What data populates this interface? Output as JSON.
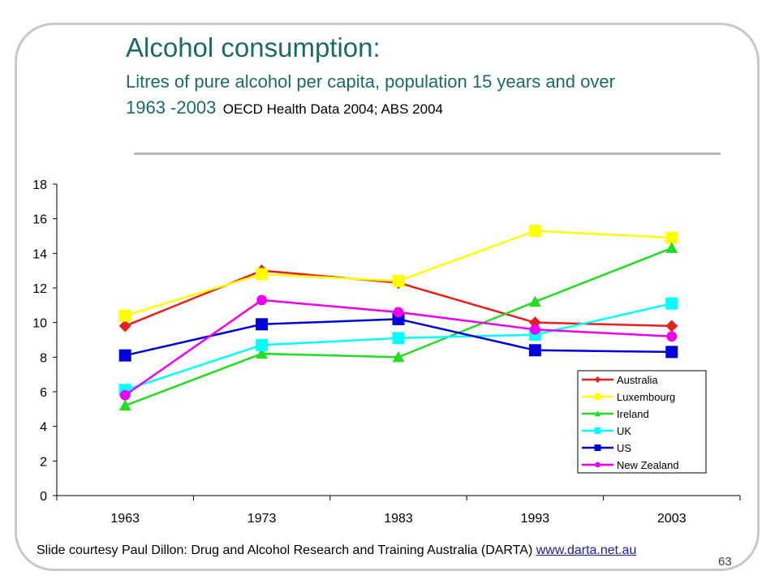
{
  "slide": {
    "title": "Alcohol consumption:",
    "subtitle": "Litres of pure alcohol per capita, population 15 years and over",
    "years": "1963 -2003",
    "source": "OECD Health Data 2004; ABS 2004",
    "footer_text": "Slide courtesy Paul Dillon: Drug and Alcohol Research and Training Australia (DARTA) ",
    "footer_link": "www.darta.net.au",
    "page_number": "63"
  },
  "chart_data": {
    "type": "line",
    "categories": [
      "1963",
      "1973",
      "1983",
      "1993",
      "2003"
    ],
    "ylim": [
      0,
      18
    ],
    "yticks": [
      0,
      2,
      4,
      6,
      8,
      10,
      12,
      14,
      16,
      18
    ],
    "grid": false,
    "legend_position": "bottom-right",
    "series": [
      {
        "name": "Australia",
        "color": "#e4211c",
        "marker": "diamond",
        "values": [
          9.8,
          13.0,
          12.3,
          10.0,
          9.8
        ]
      },
      {
        "name": "Luxembourg",
        "color": "#ffff00",
        "marker": "square",
        "values": [
          10.4,
          12.8,
          12.4,
          15.3,
          14.9
        ]
      },
      {
        "name": "Ireland",
        "color": "#22dd22",
        "marker": "triangle",
        "values": [
          5.2,
          8.2,
          8.0,
          11.2,
          14.3
        ]
      },
      {
        "name": "UK",
        "color": "#00ffff",
        "marker": "square",
        "values": [
          6.1,
          8.7,
          9.1,
          9.3,
          11.1
        ]
      },
      {
        "name": "US",
        "color": "#0000dd",
        "marker": "square",
        "values": [
          8.1,
          9.9,
          10.2,
          8.4,
          8.3
        ]
      },
      {
        "name": "New Zealand",
        "color": "#ee00ee",
        "marker": "circle",
        "values": [
          5.8,
          11.3,
          10.6,
          9.6,
          9.2
        ]
      }
    ]
  }
}
